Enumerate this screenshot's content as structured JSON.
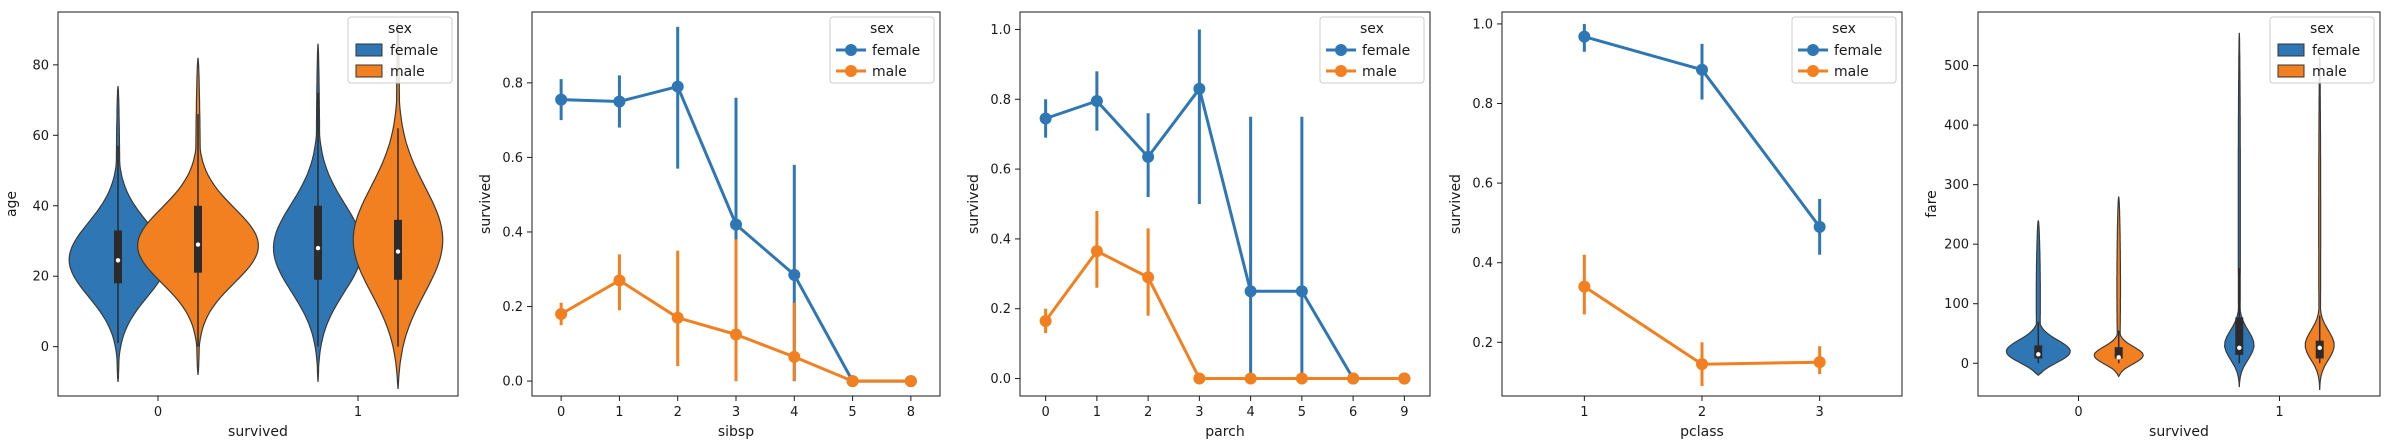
{
  "colors": {
    "female": "#2f77b4",
    "male": "#f28020"
  },
  "legend": {
    "title": "sex",
    "entries": [
      "female",
      "male"
    ]
  },
  "chart_data": [
    {
      "type": "violin",
      "xlabel": "survived",
      "ylabel": "age",
      "categories": [
        "0",
        "1"
      ],
      "ylim": [
        -14,
        95
      ],
      "yticks": [
        0,
        20,
        40,
        60,
        80
      ],
      "violins": [
        {
          "cat": 0,
          "series": "female",
          "min": -10,
          "max": 74,
          "mode": 24,
          "sd": 11,
          "q1": 18,
          "median": 24.5,
          "q3": 33,
          "wlo": 1,
          "whi": 57,
          "width": 0.25
        },
        {
          "cat": 0,
          "series": "male",
          "min": -8,
          "max": 82,
          "mode": 28,
          "sd": 11,
          "q1": 21,
          "median": 29,
          "q3": 40,
          "wlo": 0,
          "whi": 66,
          "width": 0.31
        },
        {
          "cat": 1,
          "series": "female",
          "min": -10,
          "max": 86,
          "mode": 27,
          "sd": 13,
          "q1": 19,
          "median": 28,
          "q3": 40,
          "wlo": 0,
          "whi": 72,
          "width": 0.23
        },
        {
          "cat": 1,
          "series": "male",
          "min": -12,
          "max": 92,
          "mode": 29,
          "sd": 16,
          "q1": 19,
          "median": 27,
          "q3": 36,
          "wlo": 0,
          "whi": 62,
          "width": 0.23
        }
      ]
    },
    {
      "type": "pointplot",
      "xlabel": "sibsp",
      "ylabel": "survived",
      "categories": [
        "0",
        "1",
        "2",
        "3",
        "4",
        "5",
        "8"
      ],
      "ylim": [
        -0.04,
        0.99
      ],
      "yticks": [
        0.0,
        0.2,
        0.4,
        0.6,
        0.8
      ],
      "series": [
        {
          "name": "female",
          "values": [
            0.755,
            0.75,
            0.79,
            0.42,
            0.285,
            0.0,
            0.0
          ],
          "ci": [
            [
              0.7,
              0.81
            ],
            [
              0.68,
              0.82
            ],
            [
              0.57,
              0.95
            ],
            [
              0.0,
              0.76
            ],
            [
              0.0,
              0.58
            ],
            null,
            null
          ]
        },
        {
          "name": "male",
          "values": [
            0.18,
            0.27,
            0.17,
            0.125,
            0.065,
            0.0,
            0.0
          ],
          "ci": [
            [
              0.15,
              0.21
            ],
            [
              0.19,
              0.34
            ],
            [
              0.04,
              0.35
            ],
            [
              0.0,
              0.38
            ],
            [
              0.0,
              0.21
            ],
            null,
            null
          ]
        }
      ]
    },
    {
      "type": "pointplot",
      "xlabel": "parch",
      "ylabel": "survived",
      "categories": [
        "0",
        "1",
        "2",
        "3",
        "4",
        "5",
        "6",
        "9"
      ],
      "ylim": [
        -0.05,
        1.05
      ],
      "yticks": [
        0.0,
        0.2,
        0.4,
        0.6,
        0.8,
        1.0
      ],
      "series": [
        {
          "name": "female",
          "values": [
            0.745,
            0.795,
            0.635,
            0.83,
            0.25,
            0.25,
            0.0,
            0.0
          ],
          "ci": [
            [
              0.69,
              0.8
            ],
            [
              0.71,
              0.88
            ],
            [
              0.52,
              0.76
            ],
            [
              0.5,
              1.0
            ],
            [
              0.0,
              0.75
            ],
            [
              0.0,
              0.75
            ],
            null,
            null
          ]
        },
        {
          "name": "male",
          "values": [
            0.165,
            0.365,
            0.29,
            0.0,
            0.0,
            0.0,
            0.0,
            0.0
          ],
          "ci": [
            [
              0.13,
              0.2
            ],
            [
              0.26,
              0.48
            ],
            [
              0.18,
              0.43
            ],
            null,
            null,
            null,
            null,
            null
          ]
        }
      ]
    },
    {
      "type": "pointplot",
      "xlabel": "pclass",
      "ylabel": "survived",
      "categories": [
        "1",
        "2",
        "3"
      ],
      "ylim": [
        0.065,
        1.03
      ],
      "yticks": [
        0.2,
        0.4,
        0.6,
        0.8,
        1.0
      ],
      "series": [
        {
          "name": "female",
          "values": [
            0.968,
            0.885,
            0.49
          ],
          "ci": [
            [
              0.93,
              1.0
            ],
            [
              0.81,
              0.95
            ],
            [
              0.42,
              0.56
            ]
          ]
        },
        {
          "name": "male",
          "values": [
            0.34,
            0.145,
            0.15
          ],
          "ci": [
            [
              0.27,
              0.42
            ],
            [
              0.09,
              0.2
            ],
            [
              0.12,
              0.19
            ]
          ]
        }
      ]
    },
    {
      "type": "violin",
      "xlabel": "survived",
      "ylabel": "fare",
      "categories": [
        "0",
        "1"
      ],
      "ylim": [
        -55,
        590
      ],
      "yticks": [
        0,
        100,
        200,
        300,
        400,
        500
      ],
      "violins": [
        {
          "cat": 0,
          "series": "female",
          "min": -20,
          "max": 240,
          "mode": 15,
          "sd": 20,
          "q1": 8,
          "median": 15,
          "q3": 30,
          "wlo": 0,
          "whi": 70,
          "width": 0.25
        },
        {
          "cat": 0,
          "series": "male",
          "min": -22,
          "max": 280,
          "mode": 10,
          "sd": 15,
          "q1": 8,
          "median": 10,
          "q3": 27,
          "wlo": 0,
          "whi": 55,
          "width": 0.22
        },
        {
          "cat": 1,
          "series": "female",
          "min": -40,
          "max": 555,
          "mode": 26,
          "sd": 25,
          "q1": 14,
          "median": 26,
          "q3": 77,
          "wlo": 0,
          "whi": 160,
          "width": 0.13
        },
        {
          "cat": 1,
          "series": "male",
          "min": -45,
          "max": 515,
          "mode": 26,
          "sd": 25,
          "q1": 8,
          "median": 26,
          "q3": 38,
          "wlo": 0,
          "whi": 80,
          "width": 0.12
        }
      ]
    }
  ]
}
